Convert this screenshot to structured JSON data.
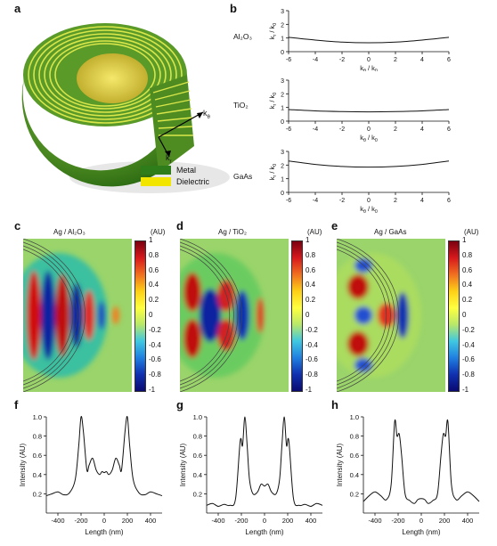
{
  "panels": {
    "a": {
      "label": "a",
      "k_theta": "k",
      "k_theta_sub": "θ",
      "k_r": "k",
      "k_r_sub": "r",
      "legend": [
        {
          "name": "Metal",
          "color": "#2e7d1a"
        },
        {
          "name": "Dielectric",
          "color": "#f2e600"
        }
      ]
    },
    "b": {
      "label": "b"
    },
    "c": {
      "label": "c",
      "title": "Ag / Al₂O₃"
    },
    "d": {
      "label": "d",
      "title": "Ag / TiO₂"
    },
    "e": {
      "label": "e",
      "title": "Ag / GaAs"
    },
    "f": {
      "label": "f"
    },
    "g": {
      "label": "g"
    },
    "h": {
      "label": "h"
    }
  },
  "colorbar": {
    "unit": "(AU)",
    "ticks": [
      "1",
      "0.8",
      "0.6",
      "0.4",
      "0.2",
      "0",
      "-0.2",
      "-0.4",
      "-0.6",
      "-0.8",
      "-1"
    ]
  },
  "chart_data": [
    {
      "type": "line",
      "id": "b-Al2O3",
      "material": "Al₂O₃",
      "xlabel": "kθ / k0",
      "ylabel": "kr / k0",
      "xlim": [
        -6,
        6
      ],
      "ylim": [
        0,
        3
      ],
      "xticks": [
        "-6",
        "-4",
        "-2",
        "0",
        "2",
        "4",
        "6"
      ],
      "yticks": [
        "0",
        "1",
        "2",
        "3"
      ],
      "x": [
        -6,
        -4,
        -2,
        0,
        2,
        4,
        6
      ],
      "y": [
        1.05,
        0.85,
        0.7,
        0.65,
        0.7,
        0.85,
        1.05
      ]
    },
    {
      "type": "line",
      "id": "b-TiO2",
      "material": "TiO₂",
      "xlabel": "kθ / k0",
      "ylabel": "kr / k0",
      "xlim": [
        -6,
        6
      ],
      "ylim": [
        0,
        3
      ],
      "xticks": [
        "-6",
        "-4",
        "-2",
        "0",
        "2",
        "4",
        "6"
      ],
      "yticks": [
        "0",
        "1",
        "2",
        "3"
      ],
      "x": [
        -6,
        -4,
        -2,
        0,
        2,
        4,
        6
      ],
      "y": [
        0.85,
        0.75,
        0.7,
        0.68,
        0.7,
        0.75,
        0.85
      ]
    },
    {
      "type": "line",
      "id": "b-GaAs",
      "material": "GaAs",
      "xlabel": "kθ / k0",
      "ylabel": "kr / k0",
      "xlim": [
        -6,
        6
      ],
      "ylim": [
        0,
        3
      ],
      "xticks": [
        "-6",
        "-4",
        "-2",
        "0",
        "2",
        "4",
        "6"
      ],
      "yticks": [
        "0",
        "1",
        "2",
        "3"
      ],
      "x": [
        -6,
        -4,
        -2,
        0,
        2,
        4,
        6
      ],
      "y": [
        2.3,
        2.05,
        1.9,
        1.85,
        1.9,
        2.05,
        2.3
      ]
    },
    {
      "type": "line",
      "id": "f",
      "xlabel": "Length (nm)",
      "ylabel": "Intensity (AU)",
      "xlim": [
        -500,
        500
      ],
      "ylim": [
        0,
        1
      ],
      "xticks": [
        "-400",
        "-200",
        "0",
        "200",
        "400"
      ],
      "yticks": [
        "0.2",
        "0.4",
        "0.6",
        "0.8",
        "1.0"
      ],
      "x": [
        -500,
        -450,
        -400,
        -350,
        -300,
        -250,
        -220,
        -200,
        -180,
        -150,
        -130,
        -100,
        -70,
        -40,
        -20,
        0,
        20,
        40,
        70,
        100,
        130,
        150,
        180,
        200,
        220,
        250,
        300,
        350,
        400,
        450,
        500
      ],
      "y": [
        0.18,
        0.2,
        0.22,
        0.19,
        0.21,
        0.35,
        0.7,
        1.0,
        0.85,
        0.45,
        0.5,
        0.57,
        0.45,
        0.4,
        0.43,
        0.42,
        0.43,
        0.4,
        0.45,
        0.57,
        0.5,
        0.45,
        0.85,
        1.0,
        0.7,
        0.35,
        0.21,
        0.19,
        0.22,
        0.2,
        0.18
      ]
    },
    {
      "type": "line",
      "id": "g",
      "xlabel": "Length (nm)",
      "ylabel": "Intensity (AU)",
      "xlim": [
        -500,
        500
      ],
      "ylim": [
        0,
        1
      ],
      "xticks": [
        "-400",
        "-200",
        "0",
        "200",
        "400"
      ],
      "yticks": [
        "0.2",
        "0.4",
        "0.6",
        "0.8",
        "1.0"
      ],
      "x": [
        -500,
        -450,
        -400,
        -350,
        -300,
        -250,
        -210,
        -190,
        -170,
        -150,
        -130,
        -100,
        -60,
        -30,
        0,
        30,
        60,
        100,
        130,
        150,
        170,
        190,
        210,
        250,
        300,
        350,
        400,
        450,
        500
      ],
      "y": [
        0.08,
        0.1,
        0.07,
        0.09,
        0.08,
        0.15,
        0.75,
        0.7,
        1.0,
        0.7,
        0.35,
        0.2,
        0.22,
        0.3,
        0.28,
        0.3,
        0.22,
        0.2,
        0.35,
        0.7,
        1.0,
        0.7,
        0.75,
        0.15,
        0.08,
        0.09,
        0.07,
        0.1,
        0.08
      ]
    },
    {
      "type": "line",
      "id": "h",
      "xlabel": "Length (nm)",
      "ylabel": "Intensity (AU)",
      "xlim": [
        -500,
        500
      ],
      "ylim": [
        0,
        1
      ],
      "xticks": [
        "-400",
        "-200",
        "0",
        "200",
        "400"
      ],
      "yticks": [
        "0.2",
        "0.4",
        "0.6",
        "0.8",
        "1.0"
      ],
      "x": [
        -500,
        -450,
        -400,
        -350,
        -300,
        -260,
        -230,
        -210,
        -190,
        -170,
        -140,
        -100,
        -60,
        -30,
        0,
        30,
        60,
        100,
        140,
        170,
        190,
        210,
        230,
        260,
        300,
        350,
        400,
        450,
        500
      ],
      "y": [
        0.12,
        0.18,
        0.22,
        0.18,
        0.14,
        0.3,
        0.95,
        0.8,
        0.82,
        0.6,
        0.2,
        0.13,
        0.1,
        0.14,
        0.15,
        0.14,
        0.1,
        0.13,
        0.2,
        0.6,
        0.82,
        0.8,
        0.95,
        0.3,
        0.14,
        0.18,
        0.22,
        0.18,
        0.12
      ]
    }
  ]
}
